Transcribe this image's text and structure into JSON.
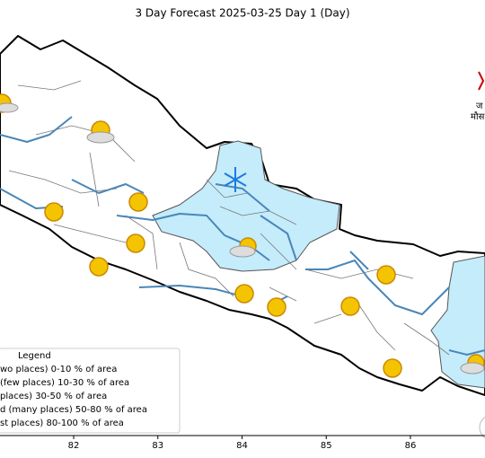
{
  "map": {
    "title": "3 Day Forecast 2025-03-25 Day 1 (Day)",
    "xlim": [
      81.125,
      86.886
    ],
    "xticks": [
      82,
      83,
      84,
      85,
      86
    ],
    "legend": {
      "title": "Legend",
      "entries": [
        "wo places)  0-10 % of area",
        "(few places) 10-30 % of area",
        "places) 30-50  % of area",
        "d (many places) 50-80 % of area",
        "st places) 80-100 % of area"
      ]
    },
    "logo_text": [
      "ज",
      "मौस"
    ]
  }
}
